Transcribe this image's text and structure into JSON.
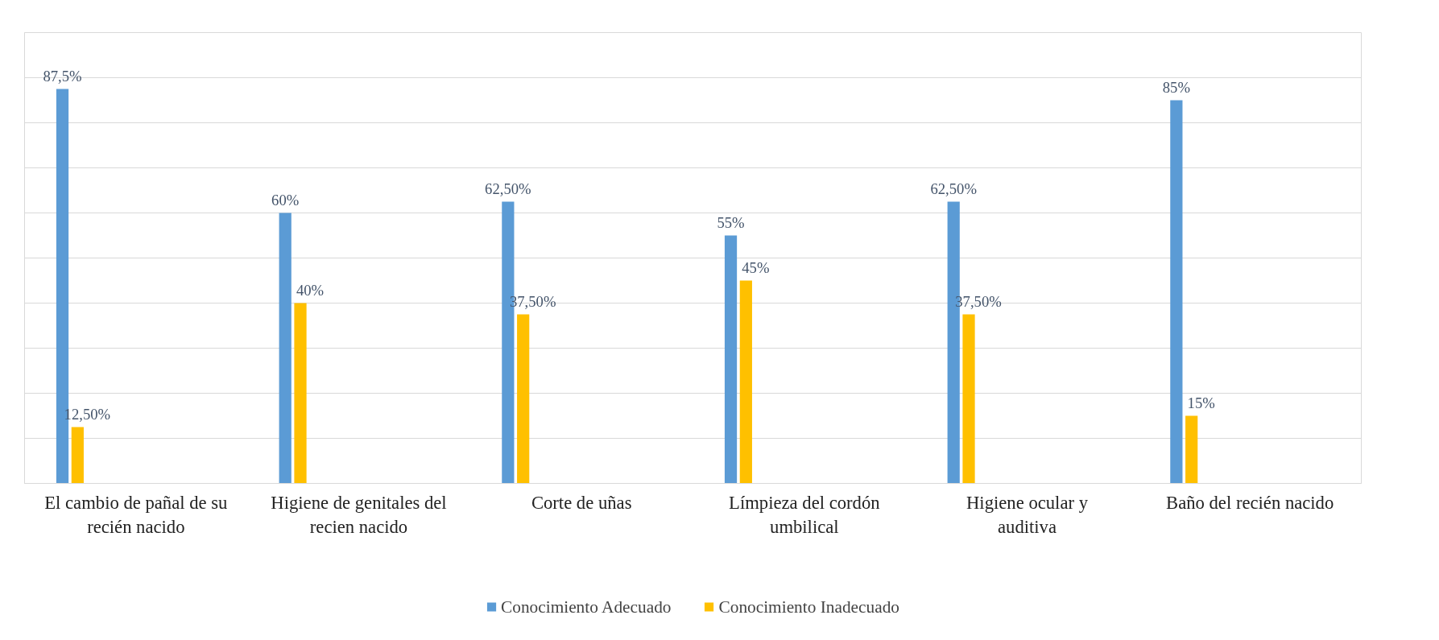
{
  "chart_data": {
    "type": "bar",
    "categories": [
      "El cambio de pañal de su recién nacido",
      "Higiene de genitales del recien nacido",
      "Corte de uñas",
      "Límpieza del cordón umbilical",
      "Higiene ocular y auditiva",
      "Baño del recién nacido"
    ],
    "series": [
      {
        "name": "Conocimiento Adecuado",
        "color": "#5b9bd5",
        "values": [
          87.5,
          60,
          62.5,
          55,
          62.5,
          85
        ],
        "value_labels": [
          "87,5%",
          "60%",
          "62,50%",
          "55%",
          "62,50%",
          "85%"
        ]
      },
      {
        "name": "Conocimiento Inadecuado",
        "color": "#ffc000",
        "values": [
          12.5,
          40,
          37.5,
          45,
          37.5,
          15
        ],
        "value_labels": [
          "12,50%",
          "40%",
          "37,50%",
          "45%",
          "37,50%",
          "15%"
        ]
      }
    ],
    "ylim": [
      0,
      100
    ],
    "yticks": [
      {
        "value": 0,
        "label": null
      },
      {
        "value": 10,
        "label": null
      },
      {
        "value": 20,
        "label": null
      },
      {
        "value": 30,
        "label": null
      },
      {
        "value": 40,
        "label": null
      },
      {
        "value": 50,
        "label": null
      },
      {
        "value": 60,
        "label": null
      },
      {
        "value": 70,
        "label": null
      },
      {
        "value": 80,
        "label": null
      },
      {
        "value": 90,
        "label": null
      },
      {
        "value": 100,
        "label": null
      }
    ],
    "tick_labels": "x",
    "grid": "y",
    "legend": "bottom"
  }
}
